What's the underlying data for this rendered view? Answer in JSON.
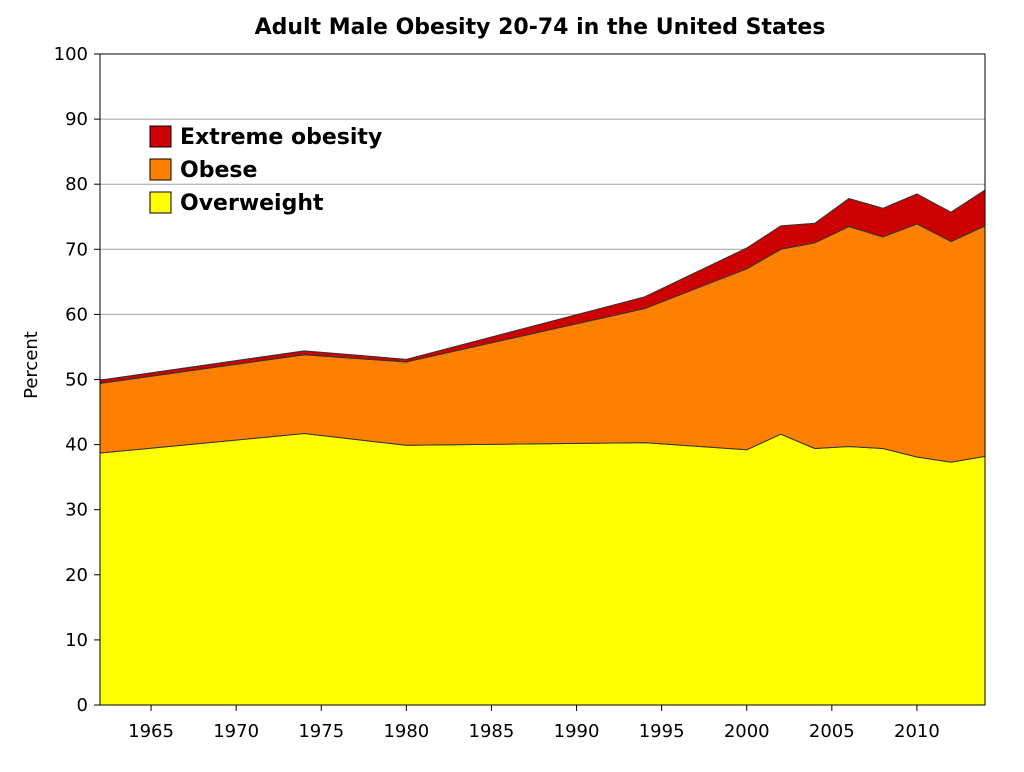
{
  "chart_data": {
    "type": "area",
    "title": "Adult Male Obesity 20-74 in the United States",
    "xlabel": "",
    "ylabel": "Percent",
    "xlim": [
      1962,
      2014
    ],
    "ylim": [
      0,
      100
    ],
    "x_ticks": [
      1965,
      1970,
      1975,
      1980,
      1985,
      1990,
      1995,
      2000,
      2005,
      2010
    ],
    "y_ticks": [
      0,
      10,
      20,
      30,
      40,
      50,
      60,
      70,
      80,
      90,
      100
    ],
    "grid": "horizontal",
    "stacked": true,
    "legend_position": "top-left",
    "x": [
      1962,
      1974,
      1980,
      1994,
      2000,
      2002,
      2004,
      2006,
      2008,
      2010,
      2012,
      2014
    ],
    "series": [
      {
        "name": "Overweight",
        "color": "#ffff00",
        "values": [
          38.7,
          41.7,
          39.9,
          40.3,
          39.2,
          41.6,
          39.4,
          39.7,
          39.4,
          38.1,
          37.3,
          38.2
        ]
      },
      {
        "name": "Obese",
        "color": "#ff8000",
        "values": [
          10.7,
          12.1,
          12.8,
          20.6,
          27.8,
          28.4,
          31.6,
          33.8,
          32.5,
          35.8,
          33.9,
          35.4
        ]
      },
      {
        "name": "Extreme obesity",
        "color": "#cc0000",
        "values": [
          0.5,
          0.6,
          0.4,
          1.8,
          3.2,
          3.6,
          3.0,
          4.3,
          4.4,
          4.6,
          4.5,
          5.5
        ]
      }
    ],
    "legend_order": [
      "Extreme obesity",
      "Obese",
      "Overweight"
    ]
  }
}
